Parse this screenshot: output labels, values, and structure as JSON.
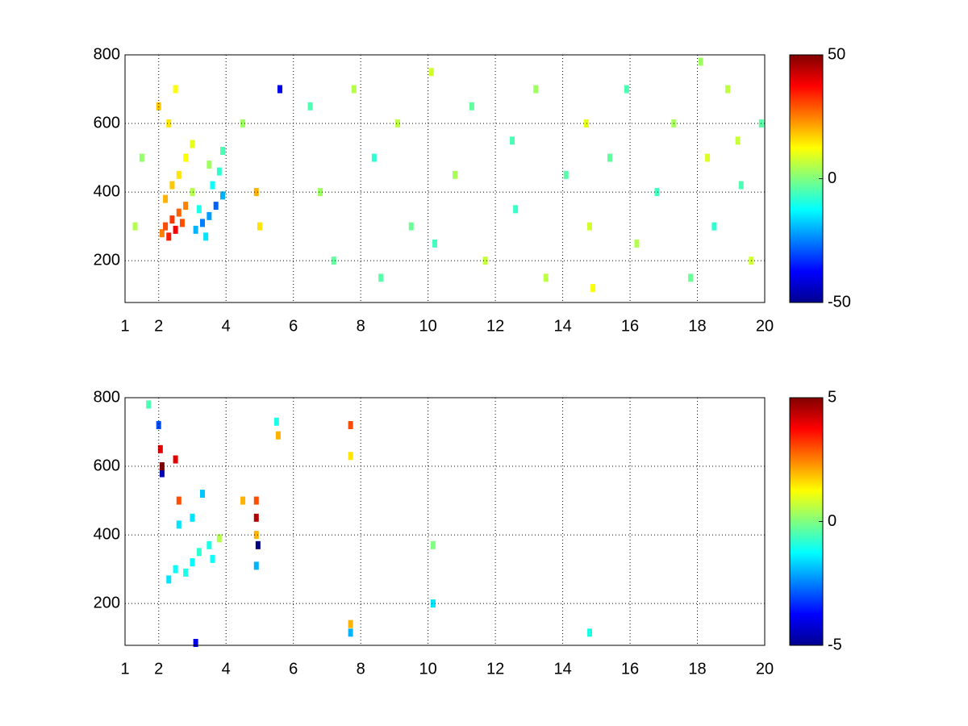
{
  "chart_data": [
    {
      "type": "heatmap",
      "colormap": "jet",
      "grid": true,
      "xlim": [
        1,
        20
      ],
      "xticks": [
        1,
        2,
        4,
        6,
        8,
        10,
        12,
        14,
        16,
        18,
        20
      ],
      "ylim": [
        78,
        800
      ],
      "yticks": [
        200,
        400,
        600,
        800
      ],
      "clim": [
        -50,
        50
      ],
      "cticks": [
        -50,
        0,
        50
      ],
      "x": [
        2.1,
        2.2,
        2.3,
        2.4,
        2.5,
        2.6,
        2.7,
        2.8,
        2.2,
        2.4,
        2.6,
        2.8,
        3.0,
        2.3,
        2.0,
        2.5,
        3.1,
        3.3,
        3.5,
        3.7,
        3.9,
        3.4,
        3.2,
        3.6,
        3.8,
        3.0,
        3.5,
        3.9,
        1.5,
        1.3,
        5.6,
        4.9,
        5.0,
        4.5,
        6.5,
        6.8,
        7.2,
        7.8,
        8.4,
        8.6,
        9.1,
        9.5,
        10.1,
        10.2,
        10.8,
        11.3,
        11.7,
        12.5,
        12.6,
        13.2,
        13.5,
        14.1,
        14.7,
        14.8,
        14.9,
        15.4,
        15.9,
        16.2,
        16.8,
        17.3,
        17.8,
        18.3,
        18.5,
        18.9,
        19.3,
        19.6,
        19.9,
        19.2,
        18.1
      ],
      "y": [
        280,
        300,
        270,
        320,
        290,
        340,
        310,
        360,
        380,
        420,
        450,
        500,
        540,
        600,
        650,
        700,
        290,
        310,
        330,
        360,
        390,
        270,
        350,
        420,
        460,
        400,
        480,
        520,
        500,
        300,
        700,
        400,
        300,
        600,
        650,
        400,
        200,
        700,
        500,
        150,
        600,
        300,
        750,
        250,
        450,
        650,
        200,
        550,
        350,
        700,
        150,
        450,
        600,
        300,
        120,
        500,
        700,
        250,
        400,
        600,
        150,
        500,
        300,
        700,
        420,
        200,
        600,
        550,
        780
      ],
      "values": [
        25,
        30,
        35,
        32,
        38,
        28,
        30,
        25,
        20,
        18,
        15,
        12,
        10,
        15,
        18,
        12,
        -20,
        -25,
        -22,
        -28,
        -20,
        -15,
        -10,
        -12,
        -8,
        5,
        3,
        -5,
        2,
        5,
        -40,
        20,
        15,
        3,
        -5,
        3,
        -3,
        5,
        -8,
        -4,
        6,
        -2,
        8,
        -6,
        4,
        -3,
        7,
        -5,
        -7,
        3,
        6,
        -4,
        10,
        8,
        12,
        -3,
        -5,
        5,
        -6,
        4,
        -2,
        9,
        -8,
        6,
        -5,
        8,
        -4,
        7,
        3
      ]
    },
    {
      "type": "heatmap",
      "colormap": "jet",
      "grid": true,
      "xlim": [
        1,
        20
      ],
      "xticks": [
        1,
        2,
        4,
        6,
        8,
        10,
        12,
        14,
        16,
        18,
        20
      ],
      "ylim": [
        78,
        800
      ],
      "yticks": [
        200,
        400,
        600,
        800
      ],
      "clim": [
        -5,
        5
      ],
      "cticks": [
        -5,
        0,
        5
      ],
      "x": [
        1.7,
        2.0,
        2.05,
        2.1,
        2.1,
        2.5,
        2.6,
        2.6,
        2.5,
        2.3,
        2.8,
        3.0,
        3.2,
        3.5,
        3.8,
        3.6,
        3.0,
        3.3,
        3.1,
        4.5,
        4.9,
        4.9,
        4.9,
        4.95,
        4.9,
        5.5,
        5.55,
        7.7,
        7.7,
        7.7,
        7.7,
        10.15,
        10.15,
        14.8
      ],
      "y": [
        780,
        720,
        650,
        580,
        600,
        620,
        500,
        430,
        300,
        270,
        290,
        320,
        350,
        370,
        390,
        330,
        450,
        520,
        85,
        500,
        500,
        450,
        400,
        370,
        310,
        730,
        690,
        720,
        630,
        140,
        115,
        200,
        370,
        115
      ],
      "values": [
        -0.5,
        -3,
        4,
        -4.5,
        5,
        4,
        3,
        -1.5,
        -1.2,
        -1.5,
        -1,
        -1.3,
        -0.8,
        -1,
        0.5,
        -1.2,
        -1.5,
        -1.8,
        -4,
        2,
        3,
        4.5,
        2,
        -5,
        -2,
        -1,
        2,
        3,
        1.5,
        2,
        -2,
        -1.5,
        0,
        -1
      ]
    }
  ]
}
